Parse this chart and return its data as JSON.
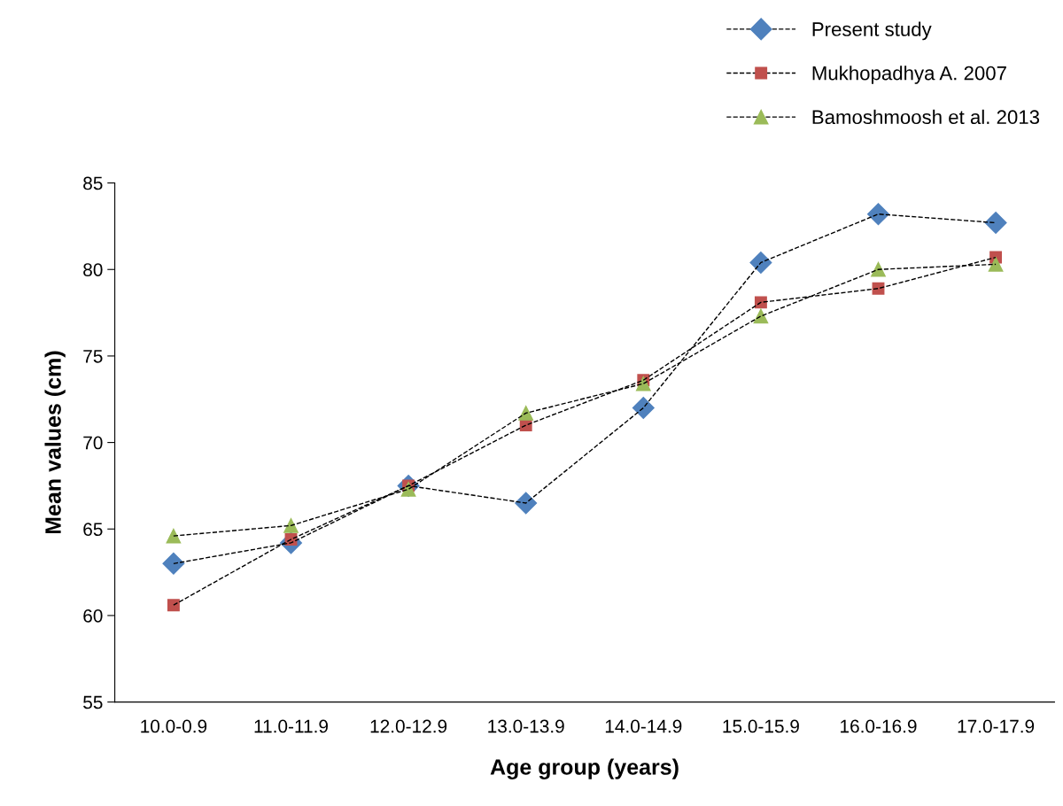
{
  "chart_data": {
    "type": "line",
    "xlabel": "Age group (years)",
    "ylabel": "Mean values (cm)",
    "categories": [
      "10.0-0.9",
      "11.0-11.9",
      "12.0-12.9",
      "13.0-13.9",
      "14.0-14.9",
      "15.0-15.9",
      "16.0-16.9",
      "17.0-17.9"
    ],
    "series": [
      {
        "name": "Present study",
        "color": "#4f81bd",
        "marker": "diamond",
        "values": [
          63.0,
          64.2,
          67.5,
          66.5,
          72.0,
          80.4,
          83.2,
          82.7
        ]
      },
      {
        "name": "Mukhopadhya A. 2007",
        "color": "#c0504d",
        "marker": "square",
        "values": [
          60.6,
          64.4,
          67.5,
          71.0,
          73.6,
          78.1,
          78.9,
          80.7
        ]
      },
      {
        "name": "Bamoshmoosh et al. 2013",
        "color": "#9bbb59",
        "marker": "triangle",
        "values": [
          64.6,
          65.2,
          67.3,
          71.7,
          73.4,
          77.3,
          80.0,
          80.3
        ]
      }
    ],
    "ylim": [
      55,
      85
    ],
    "yticks": [
      55,
      60,
      65,
      70,
      75,
      80,
      85
    ],
    "line_style": "dashed",
    "grid": false,
    "legend": "top right"
  }
}
